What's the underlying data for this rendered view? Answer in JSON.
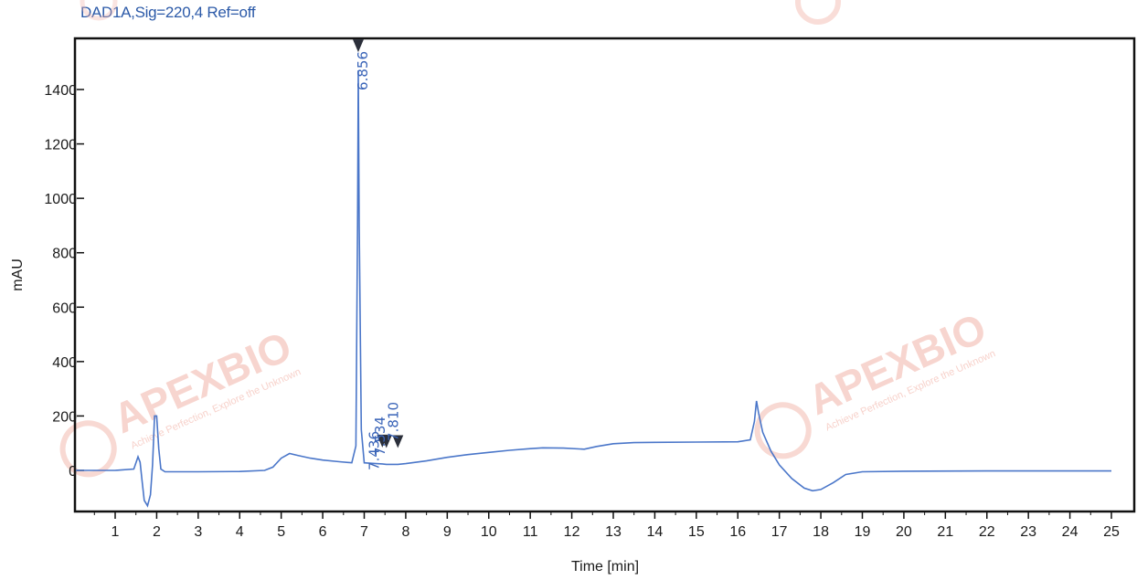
{
  "chart_data": {
    "type": "line",
    "title": "DAD1A,Sig=220,4  Ref=off",
    "xlabel": "Time [min]",
    "ylabel": "mAU",
    "xlim": [
      0,
      25.2
    ],
    "ylim": [
      -170,
      1600
    ],
    "x_ticks": [
      1,
      2,
      3,
      4,
      5,
      6,
      7,
      8,
      9,
      10,
      11,
      12,
      13,
      14,
      15,
      16,
      17,
      18,
      19,
      20,
      21,
      22,
      23,
      24,
      25
    ],
    "y_ticks": [
      0,
      200,
      400,
      600,
      800,
      1000,
      1200,
      1400
    ],
    "grid": false,
    "line_color": "#4a76c9",
    "series": [
      {
        "x": [
          0,
          1.0,
          1.45,
          1.55,
          1.6,
          1.65,
          1.7,
          1.78,
          1.85,
          1.9,
          1.95,
          2.0,
          2.05,
          2.1,
          2.2,
          2.5,
          3.0,
          4.0,
          4.6,
          4.8,
          5.0,
          5.2,
          5.4,
          5.7,
          6.0,
          6.4,
          6.7,
          6.8,
          6.84,
          6.856,
          6.88,
          6.93,
          7.0,
          7.2,
          7.436,
          7.534,
          7.81,
          8.0,
          8.5,
          9.0,
          9.5,
          10.0,
          10.5,
          11.0,
          11.3,
          11.8,
          12.3,
          12.6,
          13.0,
          13.5,
          14.0,
          15.0,
          16.0,
          16.3,
          16.4,
          16.45,
          16.5,
          16.6,
          16.8,
          17.0,
          17.3,
          17.6,
          17.8,
          18.0,
          18.3,
          18.6,
          19.0,
          20.0,
          22.0,
          25.0
        ],
        "y": [
          0,
          0,
          5,
          50,
          30,
          -40,
          -110,
          -130,
          -90,
          20,
          200,
          200,
          80,
          5,
          -5,
          -5,
          -5,
          -4,
          0,
          12,
          45,
          62,
          55,
          45,
          38,
          32,
          28,
          90,
          900,
          1470,
          900,
          150,
          28,
          26,
          24,
          22,
          22,
          25,
          35,
          48,
          58,
          66,
          74,
          80,
          83,
          82,
          78,
          88,
          98,
          102,
          103,
          104,
          105,
          112,
          180,
          255,
          210,
          140,
          70,
          20,
          -30,
          -65,
          -75,
          -70,
          -45,
          -15,
          -5,
          -3,
          -2,
          -2
        ]
      }
    ],
    "peaks": [
      {
        "time": 6.856,
        "label": "6.856",
        "value": 1470
      },
      {
        "time": 7.436,
        "label": "7.436",
        "value": 24
      },
      {
        "time": 7.534,
        "label": "7.534",
        "value": 22
      },
      {
        "time": 7.81,
        "label": "7.810",
        "value": 22
      }
    ]
  },
  "watermark": {
    "brand": "APEXBIO",
    "tagline": "Achieve Perfection, Explore the Unknown"
  }
}
